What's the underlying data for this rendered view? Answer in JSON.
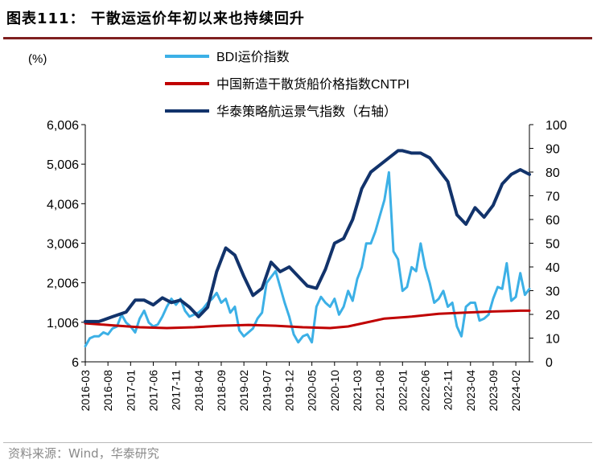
{
  "header": {
    "title": "图表111：  干散运运价年初以来也持续回升"
  },
  "footer": {
    "source": "资料来源：Wind，华泰研究"
  },
  "chart_data": {
    "type": "line",
    "left_unit": "(%)",
    "y_left": {
      "ticks": [
        "6",
        "1,006",
        "2,006",
        "3,006",
        "4,006",
        "5,006",
        "6,006"
      ],
      "lim": [
        6,
        6006
      ]
    },
    "y_right": {
      "ticks": [
        "0",
        "10",
        "20",
        "30",
        "40",
        "50",
        "60",
        "70",
        "80",
        "90",
        "100"
      ],
      "lim": [
        0,
        100
      ]
    },
    "x_ticks": [
      "2016-03",
      "2016-08",
      "2017-01",
      "2017-06",
      "2017-11",
      "2018-04",
      "2018-09",
      "2019-02",
      "2019-07",
      "2019-12",
      "2020-05",
      "2020-10",
      "2021-03",
      "2021-08",
      "2022-01",
      "2022-06",
      "2022-11",
      "2023-04",
      "2023-09",
      "2024-02"
    ],
    "x_range": [
      "2016-03",
      "2024-05"
    ],
    "series": [
      {
        "name": "BDI运价指数",
        "axis": "left",
        "color": "#3cb0e6",
        "points": [
          [
            "2016-03",
            400
          ],
          [
            "2016-04",
            600
          ],
          [
            "2016-05",
            650
          ],
          [
            "2016-06",
            650
          ],
          [
            "2016-07",
            750
          ],
          [
            "2016-08",
            700
          ],
          [
            "2016-09",
            850
          ],
          [
            "2016-10",
            900
          ],
          [
            "2016-11",
            1200
          ],
          [
            "2016-12",
            1000
          ],
          [
            "2017-01",
            900
          ],
          [
            "2017-02",
            750
          ],
          [
            "2017-03",
            1100
          ],
          [
            "2017-04",
            1300
          ],
          [
            "2017-05",
            1000
          ],
          [
            "2017-06",
            900
          ],
          [
            "2017-07",
            950
          ],
          [
            "2017-08",
            1150
          ],
          [
            "2017-09",
            1400
          ],
          [
            "2017-10",
            1600
          ],
          [
            "2017-11",
            1450
          ],
          [
            "2017-12",
            1600
          ],
          [
            "2018-01",
            1300
          ],
          [
            "2018-02",
            1150
          ],
          [
            "2018-03",
            1200
          ],
          [
            "2018-04",
            1250
          ],
          [
            "2018-05",
            1350
          ],
          [
            "2018-06",
            1500
          ],
          [
            "2018-07",
            1600
          ],
          [
            "2018-08",
            1750
          ],
          [
            "2018-09",
            1500
          ],
          [
            "2018-10",
            1600
          ],
          [
            "2018-11",
            1250
          ],
          [
            "2018-12",
            1400
          ],
          [
            "2019-01",
            800
          ],
          [
            "2019-02",
            650
          ],
          [
            "2019-03",
            750
          ],
          [
            "2019-04",
            850
          ],
          [
            "2019-05",
            1100
          ],
          [
            "2019-06",
            1250
          ],
          [
            "2019-07",
            2000
          ],
          [
            "2019-08",
            2150
          ],
          [
            "2019-09",
            2300
          ],
          [
            "2019-10",
            1900
          ],
          [
            "2019-11",
            1500
          ],
          [
            "2019-12",
            1150
          ],
          [
            "2020-01",
            700
          ],
          [
            "2020-02",
            500
          ],
          [
            "2020-03",
            650
          ],
          [
            "2020-04",
            700
          ],
          [
            "2020-05",
            500
          ],
          [
            "2020-06",
            1400
          ],
          [
            "2020-07",
            1650
          ],
          [
            "2020-08",
            1500
          ],
          [
            "2020-09",
            1400
          ],
          [
            "2020-10",
            1600
          ],
          [
            "2020-11",
            1200
          ],
          [
            "2020-12",
            1400
          ],
          [
            "2021-01",
            1800
          ],
          [
            "2021-02",
            1550
          ],
          [
            "2021-03",
            2100
          ],
          [
            "2021-04",
            2400
          ],
          [
            "2021-05",
            3000
          ],
          [
            "2021-06",
            3000
          ],
          [
            "2021-07",
            3300
          ],
          [
            "2021-08",
            3700
          ],
          [
            "2021-09",
            4100
          ],
          [
            "2021-10",
            4800
          ],
          [
            "2021-11",
            2800
          ],
          [
            "2021-12",
            2600
          ],
          [
            "2022-01",
            1800
          ],
          [
            "2022-02",
            1900
          ],
          [
            "2022-03",
            2400
          ],
          [
            "2022-04",
            2300
          ],
          [
            "2022-05",
            3000
          ],
          [
            "2022-06",
            2400
          ],
          [
            "2022-07",
            2000
          ],
          [
            "2022-08",
            1500
          ],
          [
            "2022-09",
            1600
          ],
          [
            "2022-10",
            1800
          ],
          [
            "2022-11",
            1400
          ],
          [
            "2022-12",
            1500
          ],
          [
            "2023-01",
            900
          ],
          [
            "2023-02",
            650
          ],
          [
            "2023-03",
            1400
          ],
          [
            "2023-04",
            1500
          ],
          [
            "2023-05",
            1500
          ],
          [
            "2023-06",
            1050
          ],
          [
            "2023-07",
            1100
          ],
          [
            "2023-08",
            1200
          ],
          [
            "2023-09",
            1600
          ],
          [
            "2023-10",
            1900
          ],
          [
            "2023-11",
            1850
          ],
          [
            "2023-12",
            2500
          ],
          [
            "2024-01",
            1550
          ],
          [
            "2024-02",
            1650
          ],
          [
            "2024-03",
            2250
          ],
          [
            "2024-04",
            1700
          ],
          [
            "2024-05",
            1850
          ]
        ]
      },
      {
        "name": "中国新造干散货船价格指数CNTPI",
        "axis": "left",
        "color": "#c00000",
        "points": [
          [
            "2016-03",
            980
          ],
          [
            "2016-09",
            930
          ],
          [
            "2017-03",
            880
          ],
          [
            "2017-09",
            860
          ],
          [
            "2018-03",
            880
          ],
          [
            "2018-09",
            920
          ],
          [
            "2019-03",
            940
          ],
          [
            "2019-09",
            920
          ],
          [
            "2020-03",
            880
          ],
          [
            "2020-09",
            860
          ],
          [
            "2021-01",
            900
          ],
          [
            "2021-05",
            1000
          ],
          [
            "2021-09",
            1100
          ],
          [
            "2022-03",
            1150
          ],
          [
            "2022-09",
            1220
          ],
          [
            "2023-03",
            1250
          ],
          [
            "2023-09",
            1280
          ],
          [
            "2024-03",
            1300
          ],
          [
            "2024-05",
            1300
          ]
        ]
      },
      {
        "name": "华泰策略航运景气指数（右轴）",
        "axis": "right",
        "color": "#12336b",
        "points": [
          [
            "2016-03",
            17
          ],
          [
            "2016-06",
            17
          ],
          [
            "2016-09",
            19
          ],
          [
            "2016-12",
            21
          ],
          [
            "2017-02",
            26
          ],
          [
            "2017-04",
            26
          ],
          [
            "2017-06",
            24
          ],
          [
            "2017-08",
            27
          ],
          [
            "2017-10",
            25
          ],
          [
            "2017-12",
            26
          ],
          [
            "2018-02",
            23
          ],
          [
            "2018-04",
            19
          ],
          [
            "2018-06",
            23
          ],
          [
            "2018-08",
            38
          ],
          [
            "2018-10",
            48
          ],
          [
            "2018-12",
            45
          ],
          [
            "2019-02",
            36
          ],
          [
            "2019-04",
            28
          ],
          [
            "2019-06",
            31
          ],
          [
            "2019-08",
            42
          ],
          [
            "2019-10",
            38
          ],
          [
            "2019-12",
            40
          ],
          [
            "2020-02",
            36
          ],
          [
            "2020-04",
            32
          ],
          [
            "2020-06",
            31
          ],
          [
            "2020-08",
            39
          ],
          [
            "2020-10",
            50
          ],
          [
            "2020-12",
            52
          ],
          [
            "2021-02",
            60
          ],
          [
            "2021-04",
            73
          ],
          [
            "2021-06",
            80
          ],
          [
            "2021-08",
            83
          ],
          [
            "2021-10",
            86
          ],
          [
            "2021-12",
            89
          ],
          [
            "2022-01",
            89
          ],
          [
            "2022-03",
            88
          ],
          [
            "2022-05",
            88
          ],
          [
            "2022-07",
            86
          ],
          [
            "2022-09",
            81
          ],
          [
            "2022-11",
            76
          ],
          [
            "2023-01",
            62
          ],
          [
            "2023-03",
            58
          ],
          [
            "2023-05",
            65
          ],
          [
            "2023-07",
            61
          ],
          [
            "2023-09",
            66
          ],
          [
            "2023-11",
            75
          ],
          [
            "2024-01",
            79
          ],
          [
            "2024-03",
            81
          ],
          [
            "2024-05",
            79
          ]
        ]
      }
    ],
    "legend_position": "top-center"
  }
}
